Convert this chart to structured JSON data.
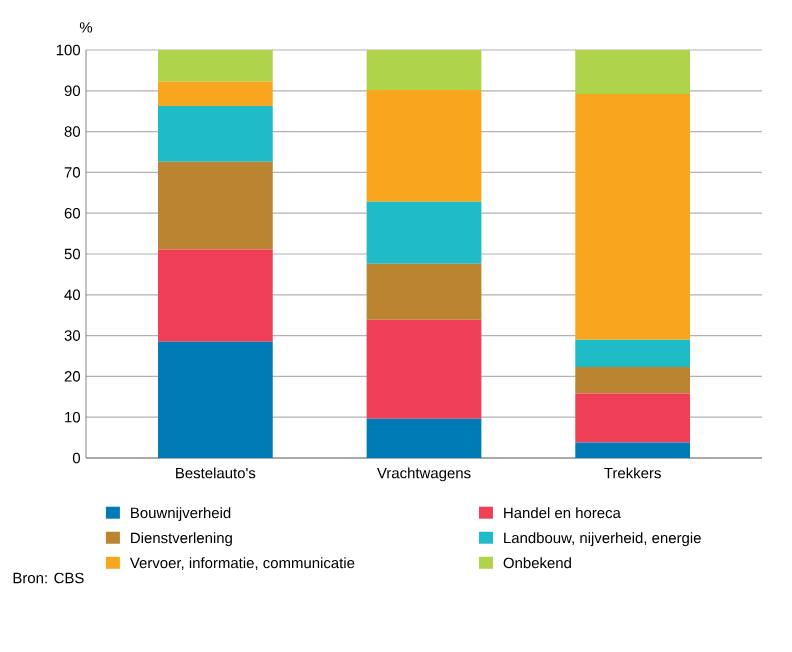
{
  "chart_data": {
    "type": "bar",
    "stacked": true,
    "ylabel": "%",
    "categories": [
      "Bestelauto's",
      "Vrachtwagens",
      "Trekkers"
    ],
    "series": [
      {
        "name": "Bouwnijverheid",
        "color": "#007bb6",
        "values": [
          28.5,
          9.6,
          3.8
        ]
      },
      {
        "name": "Handel en horeca",
        "color": "#ef4058",
        "values": [
          22.6,
          24.3,
          12.0
        ]
      },
      {
        "name": "Dienstverlening",
        "color": "#bb8430",
        "values": [
          21.5,
          13.7,
          6.5
        ]
      },
      {
        "name": "Landbouw, nijverheid, energie",
        "color": "#1fbbc6",
        "values": [
          13.7,
          15.2,
          6.7
        ]
      },
      {
        "name": "Vervoer, informatie, communicatie",
        "color": "#f8a61e",
        "values": [
          5.9,
          27.4,
          60.2
        ]
      },
      {
        "name": "Onbekend",
        "color": "#afd34a",
        "values": [
          7.8,
          9.8,
          10.8
        ]
      }
    ],
    "ylim": [
      0,
      100
    ],
    "yticks": [
      0,
      10,
      20,
      30,
      40,
      50,
      60,
      70,
      80,
      90,
      100
    ],
    "grid": "y",
    "legend": "bottom",
    "annotations": [
      "Bron: CBS"
    ]
  }
}
